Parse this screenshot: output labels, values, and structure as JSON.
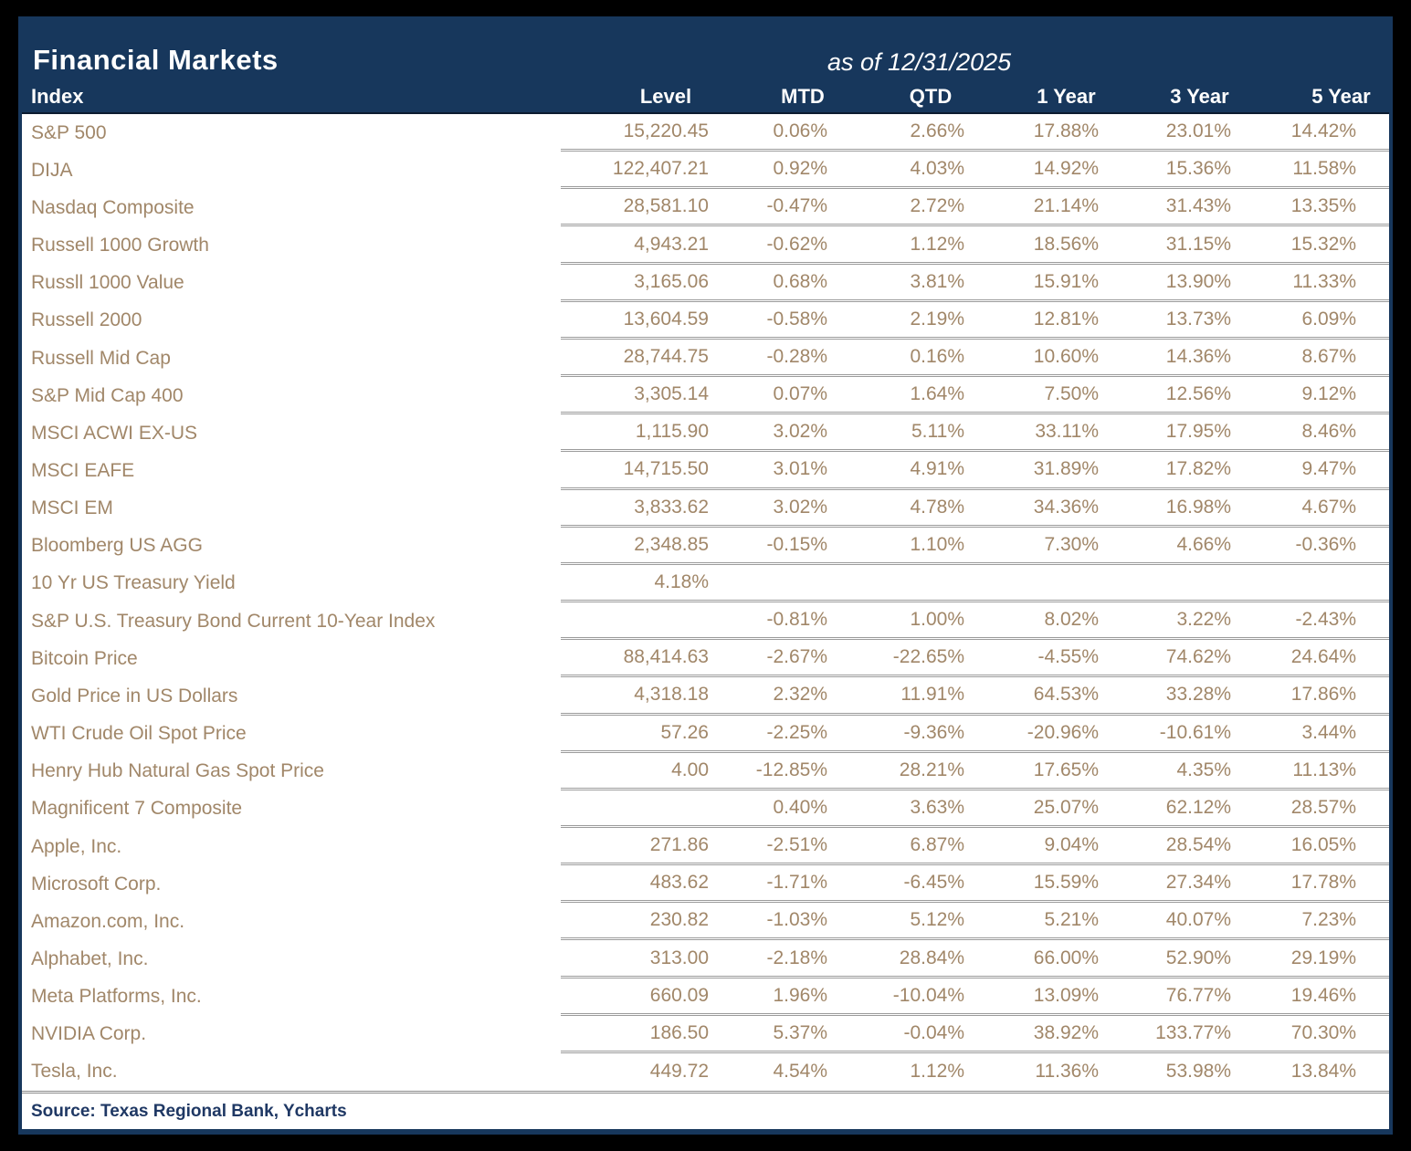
{
  "chart_data": {
    "type": "table",
    "title": "Financial Markets",
    "as_of": "as of 12/31/2025",
    "columns": [
      "Index",
      "Level",
      "MTD",
      "QTD",
      "1 Year",
      "3 Year",
      "5 Year"
    ],
    "rows": [
      [
        "S&P 500",
        "15,220.45",
        "0.06%",
        "2.66%",
        "17.88%",
        "23.01%",
        "14.42%"
      ],
      [
        "DIJA",
        "122,407.21",
        "0.92%",
        "4.03%",
        "14.92%",
        "15.36%",
        "11.58%"
      ],
      [
        "Nasdaq Composite",
        "28,581.10",
        "-0.47%",
        "2.72%",
        "21.14%",
        "31.43%",
        "13.35%"
      ],
      [
        "Russell 1000 Growth",
        "4,943.21",
        "-0.62%",
        "1.12%",
        "18.56%",
        "31.15%",
        "15.32%"
      ],
      [
        "Russll 1000 Value",
        "3,165.06",
        "0.68%",
        "3.81%",
        "15.91%",
        "13.90%",
        "11.33%"
      ],
      [
        "Russell 2000",
        "13,604.59",
        "-0.58%",
        "2.19%",
        "12.81%",
        "13.73%",
        "6.09%"
      ],
      [
        "Russell Mid Cap",
        "28,744.75",
        "-0.28%",
        "0.16%",
        "10.60%",
        "14.36%",
        "8.67%"
      ],
      [
        "S&P Mid Cap 400",
        "3,305.14",
        "0.07%",
        "1.64%",
        "7.50%",
        "12.56%",
        "9.12%"
      ],
      [
        "MSCI ACWI EX-US",
        "1,115.90",
        "3.02%",
        "5.11%",
        "33.11%",
        "17.95%",
        "8.46%"
      ],
      [
        "MSCI EAFE",
        "14,715.50",
        "3.01%",
        "4.91%",
        "31.89%",
        "17.82%",
        "9.47%"
      ],
      [
        "MSCI EM",
        "3,833.62",
        "3.02%",
        "4.78%",
        "34.36%",
        "16.98%",
        "4.67%"
      ],
      [
        "Bloomberg US AGG",
        "2,348.85",
        "-0.15%",
        "1.10%",
        "7.30%",
        "4.66%",
        "-0.36%"
      ],
      [
        "10 Yr US Treasury Yield",
        "4.18%",
        "",
        "",
        "",
        "",
        ""
      ],
      [
        "S&P U.S. Treasury Bond Current 10-Year Index",
        "",
        "-0.81%",
        "1.00%",
        "8.02%",
        "3.22%",
        "-2.43%"
      ],
      [
        "Bitcoin Price",
        "88,414.63",
        "-2.67%",
        "-22.65%",
        "-4.55%",
        "74.62%",
        "24.64%"
      ],
      [
        "Gold Price in US Dollars",
        "4,318.18",
        "2.32%",
        "11.91%",
        "64.53%",
        "33.28%",
        "17.86%"
      ],
      [
        "WTI Crude Oil Spot Price",
        "57.26",
        "-2.25%",
        "-9.36%",
        "-20.96%",
        "-10.61%",
        "3.44%"
      ],
      [
        "Henry Hub Natural Gas Spot Price",
        "4.00",
        "-12.85%",
        "28.21%",
        "17.65%",
        "4.35%",
        "11.13%"
      ],
      [
        "Magnificent 7 Composite",
        "",
        "0.40%",
        "3.63%",
        "25.07%",
        "62.12%",
        "28.57%"
      ],
      [
        "Apple, Inc.",
        "271.86",
        "-2.51%",
        "6.87%",
        "9.04%",
        "28.54%",
        "16.05%"
      ],
      [
        "Microsoft Corp.",
        "483.62",
        "-1.71%",
        "-6.45%",
        "15.59%",
        "27.34%",
        "17.78%"
      ],
      [
        "Amazon.com, Inc.",
        "230.82",
        "-1.03%",
        "5.12%",
        "5.21%",
        "40.07%",
        "7.23%"
      ],
      [
        "Alphabet, Inc.",
        "313.00",
        "-2.18%",
        "28.84%",
        "66.00%",
        "52.90%",
        "29.19%"
      ],
      [
        "Meta Platforms, Inc.",
        "660.09",
        "1.96%",
        "-10.04%",
        "13.09%",
        "76.77%",
        "19.46%"
      ],
      [
        "NVIDIA Corp.",
        "186.50",
        "5.37%",
        "-0.04%",
        "38.92%",
        "133.77%",
        "70.30%"
      ],
      [
        "Tesla, Inc.",
        "449.72",
        "4.54%",
        "1.12%",
        "11.36%",
        "53.98%",
        "13.84%"
      ]
    ],
    "legend_position": "none",
    "grid": "row-separators-numeric-columns-only"
  },
  "footer": {
    "source": "Source: Texas Regional Bank, Ycharts"
  },
  "colors": {
    "header_bg": "#17375C",
    "header_text": "#FFFFFF",
    "body_text": "#A18769",
    "separator": "#9B9B9B",
    "source_text": "#1F3864",
    "page_bg": "#000000"
  }
}
